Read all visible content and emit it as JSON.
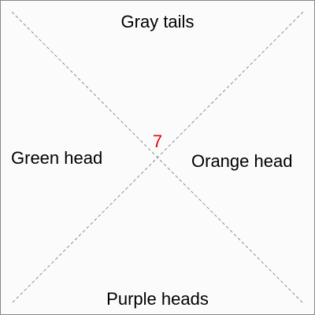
{
  "regions": {
    "top": "Gray tails",
    "left": "Green head",
    "right": "Orange head",
    "bottom": "Purple heads"
  },
  "center_value": "7",
  "colors": {
    "center_value": "#e8000b",
    "text": "#000000",
    "dashed_lines": "#777777",
    "border": "#888888"
  }
}
